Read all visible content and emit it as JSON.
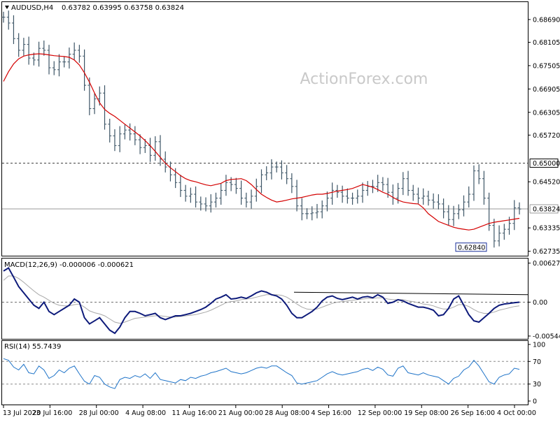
{
  "header": {
    "symbol": "AUDUSD,H4",
    "ohlc": "0.63782 0.63995 0.63758 0.63824"
  },
  "watermark": "ActionForex.com",
  "colors": {
    "price": "#3d5566",
    "ma": "#d40000",
    "macd": "#0d1a7a",
    "signal": "#a8a8a8",
    "rsi": "#1e73c8",
    "grid": "#808080"
  },
  "chart_data": [
    {
      "type": "line",
      "title": "",
      "price_axis_ticks": [
        "0.68690",
        "0.68105",
        "0.67505",
        "0.66905",
        "0.66305",
        "0.65720",
        "0.65000",
        "0.64520",
        "0.63824",
        "0.63335",
        "0.62735"
      ],
      "ylim": [
        0.6262,
        0.6912
      ],
      "x_labels": [
        "13 Jul 2023",
        "20 Jul 16:00",
        "28 Jul 00:00",
        "4 Aug 08:00",
        "11 Aug 16:00",
        "21 Aug 00:00",
        "28 Aug 08:00",
        "4 Sep 16:00",
        "12 Sep 00:00",
        "19 Sep 08:00",
        "26 Sep 16:00",
        "4 Oct 00:00"
      ],
      "horizontal_lines": [
        {
          "value": 0.65,
          "label": "0.65000",
          "style": "dashed"
        },
        {
          "value": 0.63824,
          "label": "0.63824",
          "style": "solid"
        }
      ],
      "low_marker": {
        "value": 0.6284,
        "label": "0.62840"
      },
      "series": [
        {
          "values": [
            0.6875,
            0.686,
            0.682,
            0.679,
            0.6805,
            0.677,
            0.6765,
            0.6795,
            0.679,
            0.6745,
            0.674,
            0.676,
            0.676,
            0.678,
            0.679,
            0.6775,
            0.67,
            0.664,
            0.6665,
            0.668,
            0.66,
            0.657,
            0.6545,
            0.6575,
            0.6585,
            0.6575,
            0.656,
            0.654,
            0.6545,
            0.652,
            0.6555,
            0.651,
            0.649,
            0.647,
            0.645,
            0.643,
            0.6415,
            0.642,
            0.64,
            0.6395,
            0.639,
            0.64,
            0.641,
            0.643,
            0.645,
            0.6445,
            0.6435,
            0.641,
            0.64,
            0.6415,
            0.644,
            0.647,
            0.6475,
            0.649,
            0.649,
            0.6475,
            0.646,
            0.644,
            0.639,
            0.637,
            0.637,
            0.6372,
            0.6375,
            0.639,
            0.641,
            0.643,
            0.6425,
            0.6415,
            0.641,
            0.641,
            0.6415,
            0.643,
            0.644,
            0.644,
            0.645,
            0.6445,
            0.6425,
            0.641,
            0.6435,
            0.646,
            0.643,
            0.642,
            0.641,
            0.6415,
            0.6405,
            0.64,
            0.6395,
            0.6375,
            0.6355,
            0.637,
            0.638,
            0.64,
            0.642,
            0.648,
            0.646,
            0.641,
            0.634,
            0.63,
            0.632,
            0.633,
            0.6345,
            0.6385,
            0.6382
          ]
        },
        {
          "values": [
            0.671,
            0.6735,
            0.6755,
            0.6768,
            0.6775,
            0.6778,
            0.678,
            0.6781,
            0.678,
            0.6778,
            0.6776,
            0.6775,
            0.6774,
            0.6772,
            0.6765,
            0.6752,
            0.6732,
            0.6708,
            0.668,
            0.6655,
            0.6638,
            0.6628,
            0.662,
            0.661,
            0.66,
            0.659,
            0.658,
            0.657,
            0.6558,
            0.6545,
            0.653,
            0.6515,
            0.65,
            0.6488,
            0.6478,
            0.6468,
            0.646,
            0.6455,
            0.6452,
            0.6448,
            0.6444,
            0.6442,
            0.6445,
            0.6448,
            0.6455,
            0.6458,
            0.6459,
            0.646,
            0.6455,
            0.6445,
            0.6432,
            0.642,
            0.6412,
            0.6405,
            0.64,
            0.6402,
            0.6405,
            0.6408,
            0.641,
            0.6412,
            0.6415,
            0.6418,
            0.642,
            0.642,
            0.6422,
            0.6425,
            0.6428,
            0.643,
            0.6432,
            0.6435,
            0.644,
            0.6445,
            0.6442,
            0.6438,
            0.6432,
            0.6425,
            0.642,
            0.6412,
            0.6405,
            0.64,
            0.6398,
            0.6396,
            0.6395,
            0.6385,
            0.637,
            0.636,
            0.635,
            0.6345,
            0.634,
            0.6335,
            0.6332,
            0.633,
            0.6328,
            0.633,
            0.6335,
            0.634,
            0.6345,
            0.6348,
            0.635,
            0.6352,
            0.6354,
            0.6356,
            0.6358
          ]
        }
      ]
    },
    {
      "type": "line",
      "title": "MACD(12,26,9) -0.000006 -0.000621",
      "axis_ticks": [
        "0.006275",
        "0.00",
        "-0.005446"
      ],
      "ylim": [
        -0.0059,
        0.0069
      ],
      "horizontal_lines": [
        {
          "value": 0,
          "style": "dashed"
        }
      ],
      "series": [
        {
          "values": [
            0.005,
            0.0055,
            0.004,
            0.0025,
            0.0015,
            0.0005,
            -0.0005,
            -0.001,
            0.0,
            -0.0015,
            -0.002,
            -0.0015,
            -0.001,
            -0.0005,
            0.0005,
            0.0,
            -0.0025,
            -0.0035,
            -0.003,
            -0.0025,
            -0.0035,
            -0.0045,
            -0.005,
            -0.004,
            -0.0025,
            -0.0015,
            -0.0015,
            -0.0018,
            -0.0022,
            -0.002,
            -0.0018,
            -0.0025,
            -0.0028,
            -0.0025,
            -0.0022,
            -0.0022,
            -0.002,
            -0.0018,
            -0.0015,
            -0.0012,
            -0.0008,
            -0.0002,
            0.0005,
            0.0008,
            0.0012,
            0.0005,
            0.0006,
            0.0008,
            0.0006,
            0.001,
            0.0015,
            0.0018,
            0.0016,
            0.0012,
            0.001,
            0.0005,
            -0.0005,
            -0.0018,
            -0.0025,
            -0.0025,
            -0.002,
            -0.0015,
            -0.0008,
            0.0002,
            0.0008,
            0.001,
            0.0006,
            0.0004,
            0.0006,
            0.0008,
            0.0005,
            0.0008,
            0.0009,
            0.0007,
            0.0012,
            0.0008,
            -0.0002,
            0.0,
            0.0004,
            0.0002,
            -0.0002,
            -0.0005,
            -0.0008,
            -0.0008,
            -0.001,
            -0.0013,
            -0.0022,
            -0.002,
            -0.001,
            0.0005,
            0.001,
            -0.0005,
            -0.002,
            -0.003,
            -0.0032,
            -0.0025,
            -0.0018,
            -0.001,
            -0.0005,
            -0.0003,
            -0.0002,
            -0.0001,
            0.0
          ]
        },
        {
          "values": [
            0.0035,
            0.0042,
            0.0042,
            0.0038,
            0.0032,
            0.0025,
            0.0018,
            0.0012,
            0.0008,
            0.0003,
            -0.0002,
            -0.0005,
            -0.0006,
            -0.0006,
            -0.0004,
            -0.0003,
            -0.0008,
            -0.0014,
            -0.0017,
            -0.0019,
            -0.0022,
            -0.0027,
            -0.0032,
            -0.0034,
            -0.0032,
            -0.0029,
            -0.0026,
            -0.0025,
            -0.0024,
            -0.0023,
            -0.0022,
            -0.0022,
            -0.0023,
            -0.0024,
            -0.0024,
            -0.0023,
            -0.0022,
            -0.0021,
            -0.002,
            -0.0018,
            -0.0016,
            -0.0013,
            -0.0009,
            -0.0005,
            -0.0001,
            0.0001,
            0.0002,
            0.0004,
            0.0005,
            0.0006,
            0.0008,
            0.001,
            0.0012,
            0.0012,
            0.0012,
            0.0011,
            0.0008,
            0.0003,
            -0.0003,
            -0.0008,
            -0.0011,
            -0.0012,
            -0.0011,
            -0.0008,
            -0.0005,
            -0.0002,
            0.0,
            0.0001,
            0.0002,
            0.0003,
            0.0004,
            0.0005,
            0.0006,
            0.0006,
            0.0007,
            0.0007,
            0.0005,
            0.0004,
            0.0004,
            0.0004,
            0.0002,
            0.0001,
            -0.0001,
            -0.0003,
            -0.0004,
            -0.0006,
            -0.0009,
            -0.0011,
            -0.0011,
            -0.0008,
            -0.0004,
            -0.0004,
            -0.0007,
            -0.0012,
            -0.0016,
            -0.0018,
            -0.0018,
            -0.0016,
            -0.0013,
            -0.0011,
            -0.0009,
            -0.0007,
            -0.0006
          ]
        }
      ]
    },
    {
      "type": "line",
      "title": "RSI(14) 55.7439",
      "axis_ticks": [
        "100",
        "70",
        "30",
        "0"
      ],
      "ylim": [
        0,
        100
      ],
      "horizontal_lines": [
        {
          "value": 70,
          "style": "dashed"
        },
        {
          "value": 30,
          "style": "dashed"
        }
      ],
      "series": [
        {
          "values": [
            75,
            72,
            60,
            55,
            65,
            50,
            48,
            62,
            55,
            40,
            45,
            55,
            50,
            58,
            62,
            48,
            35,
            30,
            45,
            42,
            30,
            25,
            22,
            38,
            42,
            40,
            45,
            42,
            48,
            40,
            50,
            38,
            36,
            34,
            32,
            38,
            36,
            42,
            40,
            44,
            46,
            50,
            52,
            55,
            58,
            52,
            50,
            48,
            50,
            54,
            58,
            60,
            58,
            62,
            62,
            56,
            50,
            45,
            32,
            30,
            32,
            34,
            36,
            42,
            48,
            52,
            48,
            46,
            48,
            50,
            52,
            56,
            58,
            54,
            60,
            56,
            46,
            44,
            58,
            62,
            50,
            48,
            46,
            50,
            46,
            44,
            42,
            36,
            30,
            40,
            44,
            55,
            60,
            72,
            62,
            48,
            34,
            30,
            42,
            46,
            48,
            58,
            56
          ]
        }
      ]
    }
  ]
}
